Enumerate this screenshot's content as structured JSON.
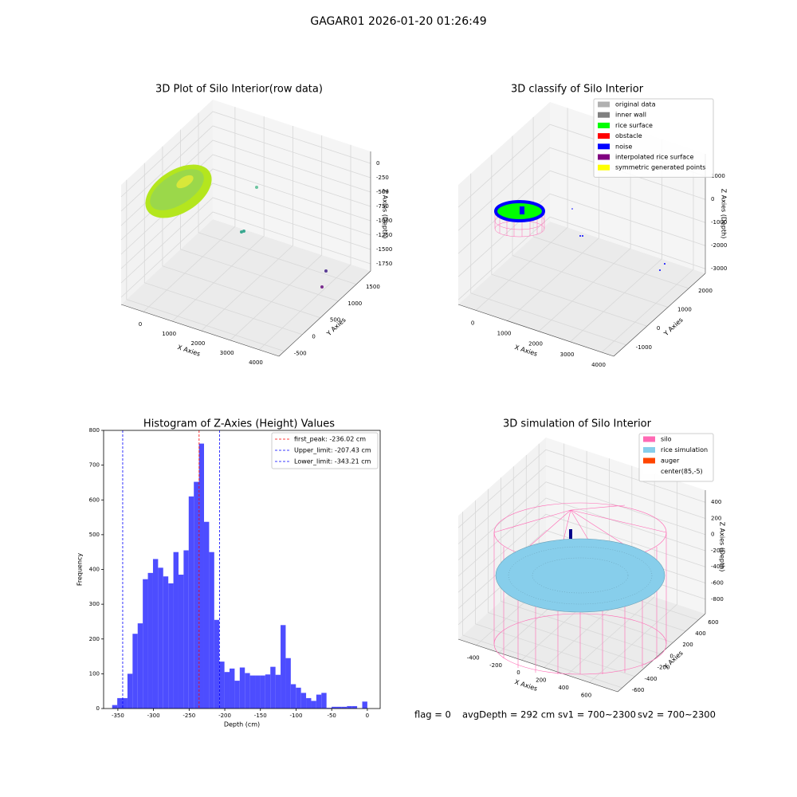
{
  "suptitle": "GAGAR01 2026-01-20 01:26:49",
  "footer": [
    "flag = 0",
    "avgDepth = 292 cm",
    "sv1 = 700~2300",
    "sv2 = 700~2300"
  ],
  "chart_data": [
    {
      "type": "scatter3d",
      "title": "3D Plot of Silo Interior(row data)",
      "xlabel": "X Axies",
      "ylabel": "Y Axies",
      "zlabel": "Z Axies (Depth)",
      "xlim": [
        -770,
        4690
      ],
      "ylim": [
        -650,
        1900
      ],
      "zlim": [
        -1875,
        208
      ],
      "xticks": [
        0,
        1000,
        2000,
        3000,
        4000
      ],
      "yticks": [
        -500,
        0,
        500,
        1000,
        1500
      ],
      "zticks": [
        0,
        -250,
        -500,
        -750,
        -1000,
        -1250,
        -1500,
        -1750
      ]
    },
    {
      "type": "scatter3d",
      "title": "3D classify of Silo Interior",
      "xlabel": "X Axies",
      "ylabel": "Y Axies",
      "zlabel": "Z Axies (Depth)",
      "xlim": [
        -560,
        4380
      ],
      "ylim": [
        -1600,
        2800
      ],
      "zlim": [
        -3200,
        1970
      ],
      "xticks": [
        0,
        1000,
        2000,
        3000,
        4000
      ],
      "yticks": [
        -1000,
        0,
        1000,
        2000
      ],
      "zticks": [
        1000,
        0,
        -1000,
        -2000,
        -3000
      ],
      "series": [
        {
          "name": "original data",
          "color": "#b0b0b0"
        },
        {
          "name": "inner wall",
          "color": "#808080"
        },
        {
          "name": "rice surface",
          "color": "#00ff00"
        },
        {
          "name": "obstacle",
          "color": "#ff0000"
        },
        {
          "name": "noise",
          "color": "#0000ff"
        },
        {
          "name": "interpolated rice surface",
          "color": "#800080"
        },
        {
          "name": "symmetric generated points",
          "color": "#ffff00"
        }
      ]
    },
    {
      "type": "histogram",
      "title": "Histogram of Z-Axies (Height) Values",
      "xlabel": "Depth (cm)",
      "ylabel": "Frequency",
      "color": "#4d4dff",
      "xlim": [
        -370,
        18
      ],
      "ylim": [
        0,
        800
      ],
      "xticks": [
        -350,
        -300,
        -250,
        -200,
        -150,
        -100,
        -50,
        0
      ],
      "yticks": [
        0,
        100,
        200,
        300,
        400,
        500,
        600,
        700,
        800
      ],
      "bins": [
        -358,
        -350.84,
        -343.68,
        -336.52,
        -329.36,
        -322.2,
        -315.04,
        -307.88,
        -300.72,
        -293.56,
        -286.4,
        -279.24,
        -272.08,
        -264.92,
        -257.76,
        -250.6,
        -243.44,
        -236.28,
        -229.12,
        -221.96,
        -214.8,
        -207.64,
        -200.48,
        -193.32,
        -186.16,
        -179,
        -171.84,
        -164.68,
        -157.52,
        -150.36,
        -143.2,
        -136.04,
        -128.88,
        -121.72,
        -114.56,
        -107.4,
        -100.24,
        -93.08,
        -85.92,
        -78.76,
        -71.6,
        -64.44,
        -57.28,
        -50.12,
        -42.96,
        -35.8,
        -28.64,
        -21.48,
        -14.32,
        -7.16,
        0
      ],
      "values": [
        10,
        30,
        30,
        100,
        215,
        245,
        372,
        390,
        430,
        405,
        380,
        360,
        450,
        385,
        455,
        610,
        652,
        762,
        537,
        450,
        255,
        135,
        105,
        115,
        80,
        118,
        102,
        95,
        95,
        95,
        98,
        120,
        97,
        240,
        145,
        70,
        60,
        45,
        30,
        22,
        40,
        45,
        2,
        5,
        5,
        5,
        7,
        7,
        0,
        20
      ],
      "vlines": [
        {
          "name": "first_peak: -236.02 cm",
          "value": -236.02,
          "color": "#ff0000"
        },
        {
          "name": "Upper_limit: -207.43 cm",
          "value": -207.43,
          "color": "#0000ff"
        },
        {
          "name": "Lower_limit: -343.21 cm",
          "value": -343.21,
          "color": "#0000ff"
        }
      ]
    },
    {
      "type": "scatter3d",
      "title": "3D simulation of Silo Interior",
      "xlabel": "X Axies",
      "ylabel": "Y Axies",
      "zlabel": "Z Axies (Depth)",
      "xlim": [
        -560,
        850
      ],
      "ylim": [
        -670,
        710
      ],
      "zlim": [
        -980,
        550
      ],
      "xticks": [
        -400,
        -200,
        0,
        200,
        400,
        600
      ],
      "yticks": [
        -600,
        -400,
        -200,
        0,
        200,
        400,
        600
      ],
      "zticks": [
        400,
        200,
        0,
        -200,
        -400,
        -600,
        -800
      ],
      "series": [
        {
          "name": "silo",
          "color": "#ff69b4"
        },
        {
          "name": "rice simulation",
          "color": "#87ceeb"
        },
        {
          "name": "auger",
          "color": "#ff4500"
        },
        {
          "name": "center(85,-5)",
          "color": "#ffffff"
        }
      ]
    }
  ]
}
